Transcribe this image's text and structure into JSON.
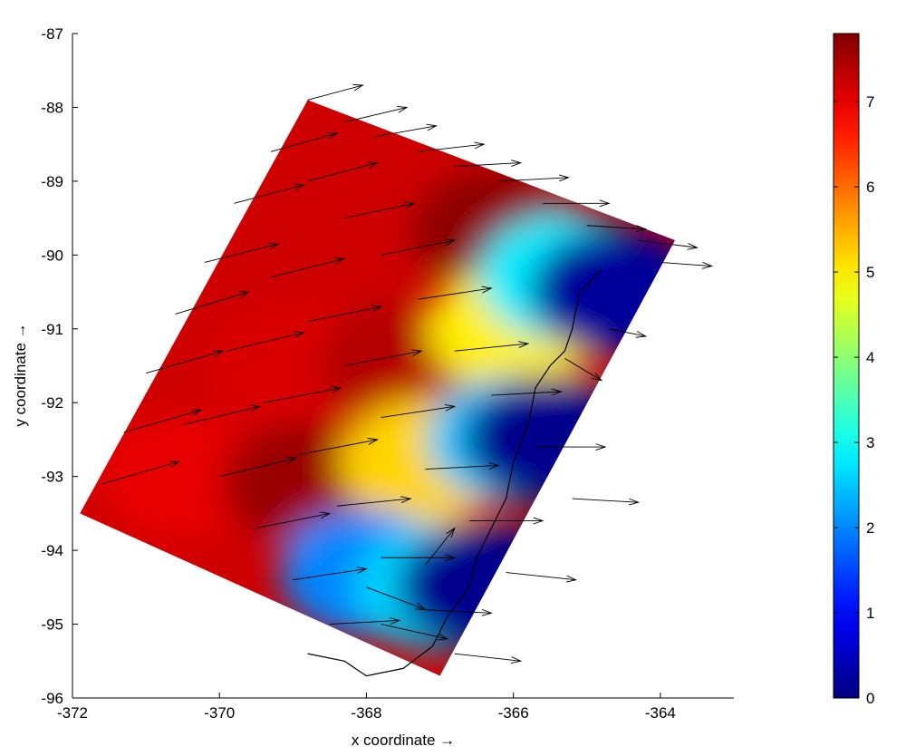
{
  "chart_data": {
    "type": "heatmap",
    "overlay": "vector-field",
    "title": "",
    "xlabel": "x coordinate →",
    "ylabel": "y coordinate →",
    "xlim": [
      -372,
      -363
    ],
    "ylim": [
      -96,
      -87
    ],
    "xticks": [
      -372,
      -370,
      -368,
      -366,
      -364
    ],
    "yticks": [
      -96,
      -95,
      -94,
      -93,
      -92,
      -91,
      -90,
      -89,
      -88,
      -87
    ],
    "grid": false,
    "colormap": "jet",
    "colorbar": {
      "range": [
        0,
        7.8
      ],
      "ticks": [
        0,
        1,
        2,
        3,
        4,
        5,
        6,
        7
      ],
      "placement": "right"
    },
    "domain_corners": [
      {
        "x": -368.8,
        "y": -87.9
      },
      {
        "x": -363.8,
        "y": -89.8
      },
      {
        "x": -367.0,
        "y": -95.7
      },
      {
        "x": -371.9,
        "y": -93.5
      }
    ],
    "field_samples": [
      {
        "x": -370.5,
        "y": -89.5,
        "value": 7.2
      },
      {
        "x": -369.0,
        "y": -91.5,
        "value": 7.1
      },
      {
        "x": -370.5,
        "y": -93.0,
        "value": 7.0
      },
      {
        "x": -366.2,
        "y": -89.7,
        "value": 7.7
      },
      {
        "x": -367.5,
        "y": -91.5,
        "value": 7.4
      },
      {
        "x": -368.8,
        "y": -93.1,
        "value": 7.6
      },
      {
        "x": -366.0,
        "y": -91.0,
        "value": 5.0
      },
      {
        "x": -367.2,
        "y": -92.8,
        "value": 5.2
      },
      {
        "x": -368.0,
        "y": -94.3,
        "value": 2.0
      },
      {
        "x": -365.3,
        "y": -90.3,
        "value": 2.8
      },
      {
        "x": -366.0,
        "y": -92.5,
        "value": 2.5
      },
      {
        "x": -367.0,
        "y": -94.5,
        "value": 2.6
      },
      {
        "x": -364.6,
        "y": -90.5,
        "value": 0.2
      },
      {
        "x": -365.5,
        "y": -92.5,
        "value": 0.1
      },
      {
        "x": -366.4,
        "y": -94.5,
        "value": 0.1
      }
    ],
    "shoreline": [
      {
        "x": -364.8,
        "y": -90.2
      },
      {
        "x": -365.1,
        "y": -90.5
      },
      {
        "x": -365.2,
        "y": -91.0
      },
      {
        "x": -365.3,
        "y": -91.3
      },
      {
        "x": -365.5,
        "y": -91.5
      },
      {
        "x": -365.7,
        "y": -91.8
      },
      {
        "x": -365.8,
        "y": -92.3
      },
      {
        "x": -366.0,
        "y": -92.8
      },
      {
        "x": -366.1,
        "y": -93.3
      },
      {
        "x": -366.3,
        "y": -93.7
      },
      {
        "x": -366.5,
        "y": -94.1
      },
      {
        "x": -366.6,
        "y": -94.5
      },
      {
        "x": -366.9,
        "y": -94.9
      },
      {
        "x": -367.1,
        "y": -95.3
      },
      {
        "x": -367.5,
        "y": -95.6
      },
      {
        "x": -368.0,
        "y": -95.7
      },
      {
        "x": -368.3,
        "y": -95.5
      },
      {
        "x": -368.8,
        "y": -95.4
      }
    ],
    "vectors": [
      {
        "x": -368.8,
        "y": -87.9,
        "u": 0.75,
        "v": 0.2
      },
      {
        "x": -368.3,
        "y": -88.2,
        "u": 0.85,
        "v": 0.2
      },
      {
        "x": -367.9,
        "y": -88.4,
        "u": 0.85,
        "v": 0.15
      },
      {
        "x": -367.3,
        "y": -88.6,
        "u": 0.9,
        "v": 0.1
      },
      {
        "x": -366.8,
        "y": -88.8,
        "u": 0.9,
        "v": 0.05
      },
      {
        "x": -366.2,
        "y": -89.0,
        "u": 0.95,
        "v": 0.05
      },
      {
        "x": -365.6,
        "y": -89.3,
        "u": 0.9,
        "v": 0.0
      },
      {
        "x": -365.0,
        "y": -89.6,
        "u": 0.8,
        "v": -0.05
      },
      {
        "x": -364.3,
        "y": -89.8,
        "u": 0.8,
        "v": -0.1
      },
      {
        "x": -364.0,
        "y": -90.1,
        "u": 0.7,
        "v": -0.05
      },
      {
        "x": -369.3,
        "y": -88.6,
        "u": 0.9,
        "v": 0.25
      },
      {
        "x": -369.8,
        "y": -89.3,
        "u": 0.95,
        "v": 0.25
      },
      {
        "x": -370.2,
        "y": -90.1,
        "u": 1.0,
        "v": 0.25
      },
      {
        "x": -370.6,
        "y": -90.8,
        "u": 1.0,
        "v": 0.3
      },
      {
        "x": -371.0,
        "y": -91.6,
        "u": 1.05,
        "v": 0.3
      },
      {
        "x": -371.3,
        "y": -92.4,
        "u": 1.05,
        "v": 0.3
      },
      {
        "x": -371.6,
        "y": -93.1,
        "u": 1.05,
        "v": 0.3
      },
      {
        "x": -368.8,
        "y": -89.0,
        "u": 0.95,
        "v": 0.25
      },
      {
        "x": -368.3,
        "y": -89.5,
        "u": 0.95,
        "v": 0.2
      },
      {
        "x": -367.8,
        "y": -90.0,
        "u": 1.0,
        "v": 0.2
      },
      {
        "x": -367.3,
        "y": -90.6,
        "u": 1.0,
        "v": 0.15
      },
      {
        "x": -366.8,
        "y": -91.3,
        "u": 1.0,
        "v": 0.1
      },
      {
        "x": -366.3,
        "y": -91.9,
        "u": 0.95,
        "v": 0.05
      },
      {
        "x": -365.7,
        "y": -92.6,
        "u": 0.95,
        "v": 0.0
      },
      {
        "x": -365.2,
        "y": -93.3,
        "u": 0.9,
        "v": -0.05
      },
      {
        "x": -369.3,
        "y": -90.3,
        "u": 1.0,
        "v": 0.25
      },
      {
        "x": -368.8,
        "y": -90.9,
        "u": 1.0,
        "v": 0.2
      },
      {
        "x": -368.3,
        "y": -91.5,
        "u": 1.05,
        "v": 0.2
      },
      {
        "x": -367.8,
        "y": -92.2,
        "u": 1.0,
        "v": 0.15
      },
      {
        "x": -367.2,
        "y": -92.9,
        "u": 1.0,
        "v": 0.05
      },
      {
        "x": -366.6,
        "y": -93.6,
        "u": 1.0,
        "v": 0.0
      },
      {
        "x": -366.1,
        "y": -94.3,
        "u": 0.95,
        "v": -0.1
      },
      {
        "x": -369.9,
        "y": -91.3,
        "u": 1.05,
        "v": 0.25
      },
      {
        "x": -369.4,
        "y": -92.0,
        "u": 1.05,
        "v": 0.2
      },
      {
        "x": -368.9,
        "y": -92.7,
        "u": 1.05,
        "v": 0.2
      },
      {
        "x": -368.4,
        "y": -93.4,
        "u": 1.0,
        "v": 0.1
      },
      {
        "x": -367.8,
        "y": -94.1,
        "u": 1.0,
        "v": 0.0
      },
      {
        "x": -367.3,
        "y": -94.8,
        "u": 1.0,
        "v": -0.05
      },
      {
        "x": -366.8,
        "y": -95.4,
        "u": 0.9,
        "v": -0.1
      },
      {
        "x": -370.5,
        "y": -92.3,
        "u": 1.05,
        "v": 0.25
      },
      {
        "x": -370.0,
        "y": -93.0,
        "u": 1.05,
        "v": 0.25
      },
      {
        "x": -369.5,
        "y": -93.7,
        "u": 1.0,
        "v": 0.2
      },
      {
        "x": -369.0,
        "y": -94.4,
        "u": 1.0,
        "v": 0.15
      },
      {
        "x": -368.5,
        "y": -95.0,
        "u": 0.95,
        "v": 0.05
      },
      {
        "x": -368.0,
        "y": -94.5,
        "u": 0.8,
        "v": -0.3
      },
      {
        "x": -367.8,
        "y": -95.0,
        "u": 0.9,
        "v": -0.2
      },
      {
        "x": -367.2,
        "y": -94.2,
        "u": 0.4,
        "v": 0.5
      },
      {
        "x": -365.3,
        "y": -91.4,
        "u": 0.5,
        "v": -0.3
      },
      {
        "x": -364.7,
        "y": -91.0,
        "u": 0.5,
        "v": -0.1
      }
    ]
  }
}
